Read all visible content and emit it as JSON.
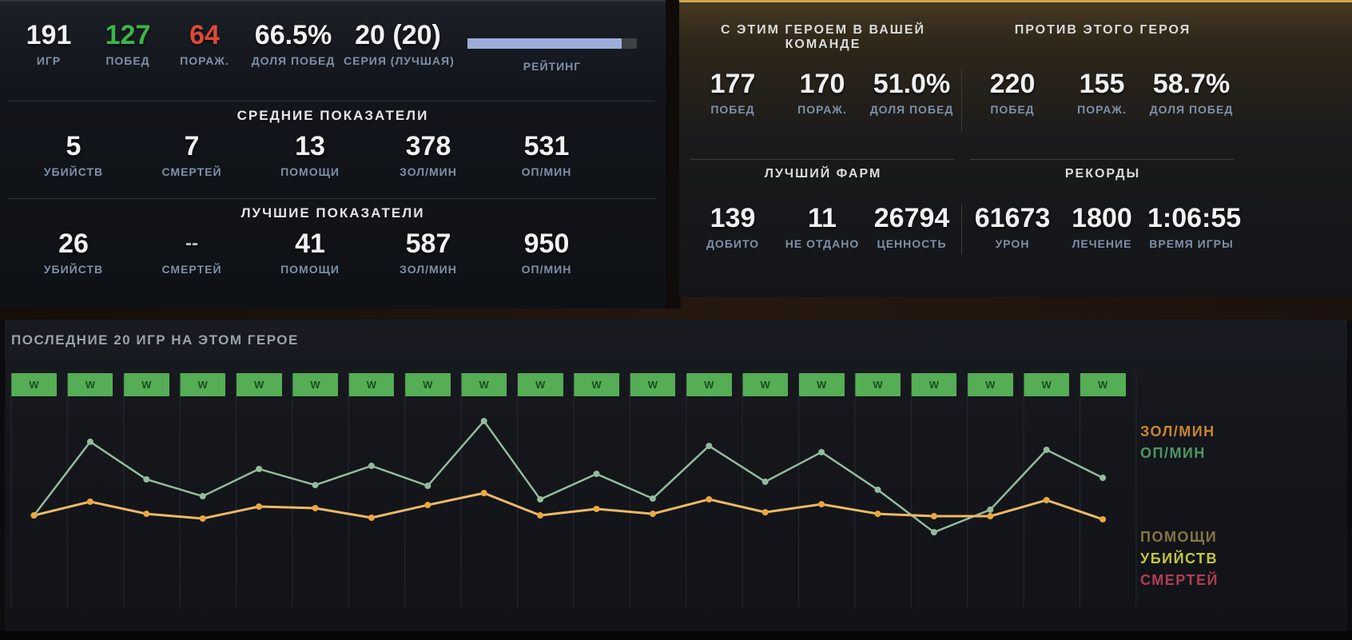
{
  "left_panel": {
    "summary": [
      {
        "value": "191",
        "label": "ИГР"
      },
      {
        "value": "127",
        "label": "ПОБЕД"
      },
      {
        "value": "64",
        "label": "ПОРАЖ."
      },
      {
        "value": "66.5%",
        "label": "ДОЛЯ ПОБЕД"
      },
      {
        "value": "20 (20)",
        "label": "СЕРИЯ (ЛУЧШАЯ)"
      }
    ],
    "rating": {
      "label": "РЕЙТИНГ",
      "percent": 91,
      "fill_color": "#9cadd9"
    },
    "sections": [
      {
        "title": "СРЕДНИЕ ПОКАЗАТЕЛИ",
        "stats": [
          {
            "value": "5",
            "label": "УБИЙСТВ"
          },
          {
            "value": "7",
            "label": "СМЕРТЕЙ"
          },
          {
            "value": "13",
            "label": "ПОМОЩИ"
          },
          {
            "value": "378",
            "label": "ЗОЛ/МИН"
          },
          {
            "value": "531",
            "label": "ОП/МИН"
          }
        ]
      },
      {
        "title": "ЛУЧШИЕ ПОКАЗАТЕЛИ",
        "stats": [
          {
            "value": "26",
            "label": "УБИЙСТВ"
          },
          {
            "value": "--",
            "label": "СМЕРТЕЙ"
          },
          {
            "value": "41",
            "label": "ПОМОЩИ"
          },
          {
            "value": "587",
            "label": "ЗОЛ/МИН"
          },
          {
            "value": "950",
            "label": "ОП/МИН"
          }
        ]
      }
    ]
  },
  "right_panel": {
    "with_hero": {
      "title": "С ЭТИМ ГЕРОЕМ В ВАШЕЙ КОМАНДЕ",
      "stats": [
        {
          "value": "177",
          "label": "ПОБЕД"
        },
        {
          "value": "170",
          "label": "ПОРАЖ."
        },
        {
          "value": "51.0%",
          "label": "ДОЛЯ ПОБЕД"
        }
      ]
    },
    "against_hero": {
      "title": "ПРОТИВ ЭТОГО ГЕРОЯ",
      "stats": [
        {
          "value": "220",
          "label": "ПОБЕД"
        },
        {
          "value": "155",
          "label": "ПОРАЖ."
        },
        {
          "value": "58.7%",
          "label": "ДОЛЯ ПОБЕД"
        }
      ]
    },
    "best_farm": {
      "title": "ЛУЧШИЙ ФАРМ",
      "stats": [
        {
          "value": "139",
          "label": "ДОБИТО"
        },
        {
          "value": "11",
          "label": "НЕ ОТДАНО"
        },
        {
          "value": "26794",
          "label": "ЦЕННОСТЬ"
        }
      ]
    },
    "records": {
      "title": "РЕКОРДЫ",
      "stats": [
        {
          "value": "61673",
          "label": "УРОН"
        },
        {
          "value": "1800",
          "label": "ЛЕЧЕНИЕ"
        },
        {
          "value": "1:06:55",
          "label": "ВРЕМЯ ИГРЫ"
        }
      ]
    }
  },
  "chart": {
    "title": "ПОСЛЕДНИЕ 20 ИГР НА ЭТОМ ГЕРОЕ",
    "win_badge_color": "#55ad55",
    "legend_top": [
      {
        "label": "ЗОЛ/МИН",
        "color": "#c9862f"
      },
      {
        "label": "ОП/МИН",
        "color": "#4f9763"
      }
    ],
    "legend_bottom": [
      {
        "label": "ПОМОЩИ",
        "color": "#857544"
      },
      {
        "label": "УБИЙСТВ",
        "color": "#c3c73a"
      },
      {
        "label": "СМЕРТЕЙ",
        "color": "#b23c55"
      }
    ]
  },
  "chart_data": {
    "type": "line",
    "title": "ПОСЛЕДНИЕ 20 ИГР НА ЭТОМ ГЕРОЕ",
    "x": [
      1,
      2,
      3,
      4,
      5,
      6,
      7,
      8,
      9,
      10,
      11,
      12,
      13,
      14,
      15,
      16,
      17,
      18,
      19,
      20
    ],
    "results": [
      "W",
      "W",
      "W",
      "W",
      "W",
      "W",
      "W",
      "W",
      "W",
      "W",
      "W",
      "W",
      "W",
      "W",
      "W",
      "W",
      "W",
      "W",
      "W",
      "W"
    ],
    "series": [
      {
        "name": "ЗОЛ/МИН",
        "line_color": "#ecb964",
        "point_color": "#eaa83e",
        "values_pct": [
          40.8,
          47.8,
          41.6,
          39.2,
          45.3,
          44.5,
          39.6,
          46.1,
          52.2,
          40.8,
          44.1,
          41.6,
          49.0,
          42.4,
          46.5,
          41.6,
          40.4,
          40.4,
          48.6,
          38.8
        ]
      },
      {
        "name": "ОП/МИН",
        "line_color": "#93bb9c",
        "point_color": "#93bb9c",
        "values_pct": [
          40.8,
          78.4,
          59.2,
          50.6,
          64.5,
          56.3,
          66.1,
          55.9,
          89.0,
          49.0,
          62.0,
          49.4,
          76.3,
          58.0,
          73.1,
          53.9,
          32.2,
          43.7,
          74.3,
          60.0
        ]
      }
    ],
    "ylim_note": "no numeric axis shown; values are percent of plot height from bottom",
    "grid": "vertical column separators only",
    "legend_position": "right"
  }
}
